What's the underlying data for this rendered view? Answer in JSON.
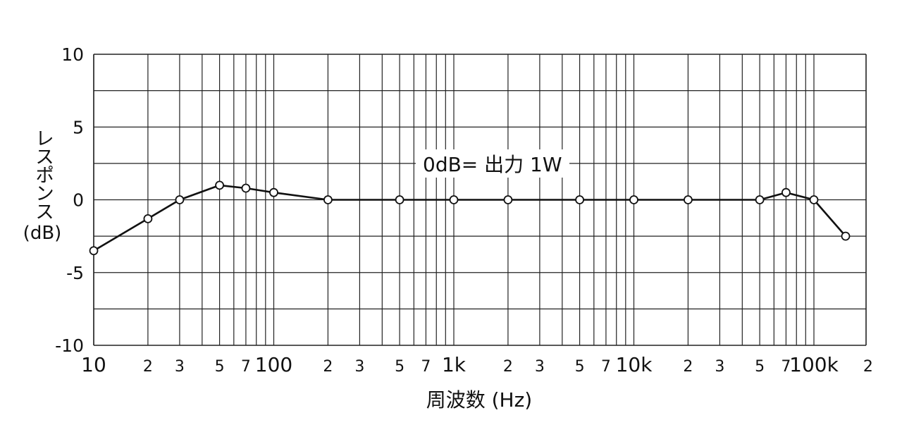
{
  "chart_data": {
    "type": "line",
    "title": "",
    "annotation": "0dB= 出力 1W",
    "xlabel": "周波数 (Hz)",
    "ylabel_main": "レスポンス",
    "ylabel_unit": "(dB)",
    "xscale": "log",
    "xlim": [
      10,
      200000
    ],
    "ylim": [
      -10,
      10
    ],
    "grid": true,
    "y_ticks": [
      {
        "value": 10,
        "label": "10"
      },
      {
        "value": 5,
        "label": "5"
      },
      {
        "value": 0,
        "label": "0"
      },
      {
        "value": -5,
        "label": "-5"
      },
      {
        "value": -10,
        "label": "-10"
      }
    ],
    "x_ticks": [
      {
        "value": 10,
        "label": "10",
        "major": true
      },
      {
        "value": 20,
        "label": "2"
      },
      {
        "value": 30,
        "label": "3"
      },
      {
        "value": 50,
        "label": "5"
      },
      {
        "value": 70,
        "label": "7"
      },
      {
        "value": 100,
        "label": "100",
        "major": true
      },
      {
        "value": 200,
        "label": "2"
      },
      {
        "value": 300,
        "label": "3"
      },
      {
        "value": 500,
        "label": "5"
      },
      {
        "value": 700,
        "label": "7"
      },
      {
        "value": 1000,
        "label": "1k",
        "major": true
      },
      {
        "value": 2000,
        "label": "2"
      },
      {
        "value": 3000,
        "label": "3"
      },
      {
        "value": 5000,
        "label": "5"
      },
      {
        "value": 7000,
        "label": "7"
      },
      {
        "value": 10000,
        "label": "10k",
        "major": true
      },
      {
        "value": 20000,
        "label": "2"
      },
      {
        "value": 30000,
        "label": "3"
      },
      {
        "value": 50000,
        "label": "5"
      },
      {
        "value": 70000,
        "label": "7"
      },
      {
        "value": 100000,
        "label": "100k",
        "major": true
      },
      {
        "value": 200000,
        "label": "2"
      }
    ],
    "series": [
      {
        "points": [
          {
            "x": 10,
            "y": -3.5
          },
          {
            "x": 20,
            "y": -1.3
          },
          {
            "x": 30,
            "y": 0
          },
          {
            "x": 50,
            "y": 1.0
          },
          {
            "x": 70,
            "y": 0.8
          },
          {
            "x": 100,
            "y": 0.5
          },
          {
            "x": 200,
            "y": 0
          },
          {
            "x": 500,
            "y": 0
          },
          {
            "x": 1000,
            "y": 0
          },
          {
            "x": 2000,
            "y": 0
          },
          {
            "x": 5000,
            "y": 0
          },
          {
            "x": 10000,
            "y": 0
          },
          {
            "x": 20000,
            "y": 0
          },
          {
            "x": 50000,
            "y": 0
          },
          {
            "x": 70000,
            "y": 0.5
          },
          {
            "x": 100000,
            "y": 0
          },
          {
            "x": 150000,
            "y": -2.5
          }
        ]
      }
    ],
    "colors": {
      "line": "#111111",
      "grid": "#222222",
      "marker_fill": "#ffffff"
    }
  }
}
